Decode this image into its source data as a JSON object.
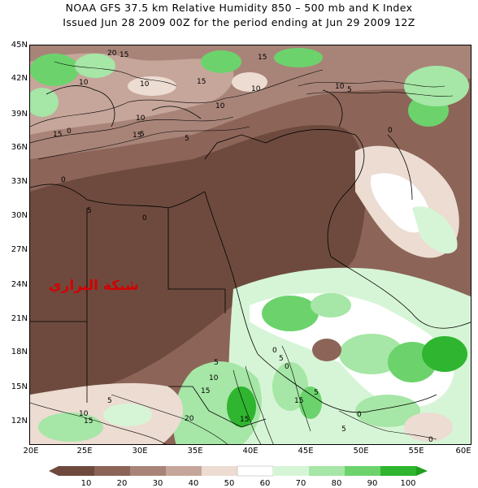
{
  "title_line1": "NOAA GFS 37.5 km Relative Humidity 850 – 500 mb and K Index",
  "title_line2": "Issued Jun 28 2009 00Z for the period ending at Jun 29 2009 12Z",
  "watermark": "شبكة البراري",
  "lat_labels": [
    "45N",
    "42N",
    "39N",
    "36N",
    "33N",
    "30N",
    "27N",
    "24N",
    "21N",
    "18N",
    "15N",
    "12N"
  ],
  "lon_labels": [
    "20E",
    "25E",
    "30E",
    "35E",
    "40E",
    "45E",
    "50E",
    "55E",
    "60E"
  ],
  "colorbar_labels": [
    "10",
    "20",
    "30",
    "40",
    "50",
    "60",
    "70",
    "80",
    "90",
    "100"
  ],
  "colorbar_colors": [
    "#6e4a3e",
    "#8c6458",
    "#a88478",
    "#c6a69a",
    "#ecdcd2",
    "#ffffff",
    "#d6f5d6",
    "#a6e6a6",
    "#6cd36c",
    "#2fb52f",
    "#1f9e1f"
  ],
  "contour_labels": [
    "20",
    "15",
    "10",
    "15",
    "10",
    "5",
    "0",
    "15",
    "10",
    "15",
    "10",
    "5",
    "0",
    "5",
    "0",
    "15",
    "10",
    "10",
    "5",
    "0",
    "20",
    "15",
    "10",
    "5",
    "15",
    "5",
    "10",
    "15",
    "0",
    "5",
    "0",
    "5",
    "0",
    "15",
    "5",
    "0"
  ],
  "map_colors": {
    "dry_dark": "#6e4a3e",
    "dry_mid": "#8c6458",
    "dry_light": "#a88478",
    "neutral": "#c6a69a",
    "pale": "#ecdcd2",
    "moist_light": "#d6f5d6",
    "moist": "#a6e6a6",
    "moist_strong": "#6cd36c",
    "saturated": "#2fb52f",
    "boundary": "#000000"
  }
}
